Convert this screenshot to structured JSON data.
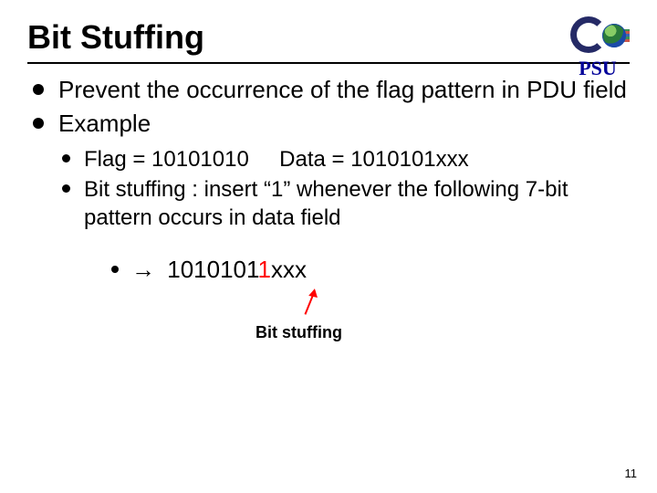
{
  "title": "Bit Stuffing",
  "logo_label": "PSU",
  "colors": {
    "highlight": "#ff0000",
    "logo_text": "#000099",
    "text": "#000000",
    "bg": "#ffffff"
  },
  "bullets_level1": [
    "Prevent the occurrence of the flag pattern in PDU field",
    "Example"
  ],
  "bullets_level2": [
    "Flag = 10101010     Data = 1010101xxx",
    "Bit stuffing : insert “1” whenever the following 7-bit pattern occurs in data field"
  ],
  "level3": {
    "arrow": "→",
    "bits_before": "1010101",
    "bits_inserted": "1",
    "bits_after": "xxx"
  },
  "annotation": "Bit stuffing",
  "page_number": "11"
}
